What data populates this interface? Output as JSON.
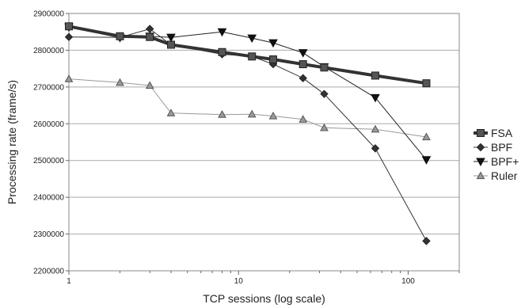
{
  "chart_data": {
    "type": "line",
    "title": "",
    "xlabel": "TCP sessions (log scale)",
    "ylabel": "Processing rate (frame/s)",
    "x_scale": "log",
    "xlim": [
      1,
      200
    ],
    "ylim": [
      2200000,
      2900000
    ],
    "x_ticks": [
      1,
      10,
      100
    ],
    "x_tick_labels": [
      "1",
      "10",
      "100"
    ],
    "y_ticks": [
      2200000,
      2300000,
      2400000,
      2500000,
      2600000,
      2700000,
      2800000,
      2900000
    ],
    "y_tick_labels": [
      "2200000",
      "2300000",
      "2400000",
      "2500000",
      "2600000",
      "2700000",
      "2800000",
      "2900000"
    ],
    "grid": "horizontal",
    "legend_position": "right",
    "x": [
      1,
      2,
      3,
      4,
      8,
      12,
      16,
      24,
      32,
      64,
      128
    ],
    "series": [
      {
        "name": "FSA",
        "marker": "square",
        "color": "#333333",
        "values": [
          2865000,
          2838000,
          2836000,
          2815000,
          2795000,
          2783000,
          2775000,
          2762000,
          2753000,
          2731000,
          2710000
        ]
      },
      {
        "name": "BPF",
        "marker": "diamond",
        "color": "#333333",
        "values": [
          2836000,
          2835000,
          2858000,
          2815000,
          2789000,
          2783000,
          2762000,
          2724000,
          2681000,
          2533000,
          2281000
        ]
      },
      {
        "name": "BPF+",
        "marker": "triangle-down",
        "color": "#222222",
        "values": [
          2863000,
          2834000,
          2838000,
          2835000,
          2850000,
          2833000,
          2820000,
          2793000,
          2755000,
          2671000,
          2502000
        ]
      },
      {
        "name": "Ruler",
        "marker": "triangle-up",
        "color": "#999999",
        "values": [
          2722000,
          2712000,
          2704000,
          2629000,
          2625000,
          2626000,
          2621000,
          2612000,
          2589000,
          2585000,
          2564000
        ]
      }
    ]
  }
}
